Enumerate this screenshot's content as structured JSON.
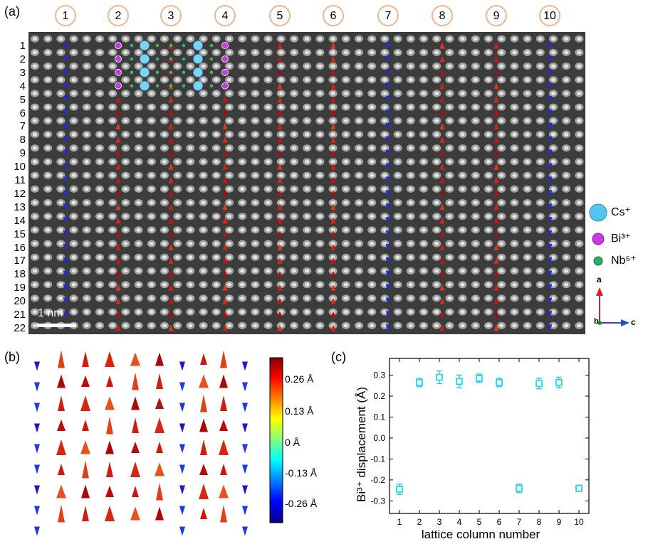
{
  "panels": {
    "a_label": "(a)",
    "b_label": "(b)",
    "c_label": "(c)"
  },
  "columns": [
    "1",
    "2",
    "3",
    "4",
    "5",
    "6",
    "7",
    "8",
    "9",
    "10"
  ],
  "rows": [
    "1",
    "2",
    "3",
    "4",
    "5",
    "6",
    "7",
    "8",
    "9",
    "10",
    "11",
    "12",
    "13",
    "14",
    "15",
    "16",
    "17",
    "18",
    "19",
    "20",
    "21",
    "22"
  ],
  "scale_bar": "1 nm",
  "legend": {
    "cs": "Cs⁺",
    "bi": "Bi³⁺",
    "nb": "Nb⁵⁺"
  },
  "axes_indicator": {
    "a": "a",
    "b": "b",
    "c": "c"
  },
  "colorbar": {
    "labels": [
      "0.26 Å",
      "0.13 Å",
      "0 Å",
      "-0.13 Å",
      "-0.26 Å"
    ]
  },
  "colors": {
    "positive": "#d71e14",
    "negative": "#1f2fd0",
    "marker": "#2ad4e6",
    "circle": "#f2b48c"
  },
  "chart_data": {
    "type": "scatter",
    "xlabel": "lattice column number",
    "ylabel": "Bi³⁺ displacement (Å)",
    "x": [
      1,
      2,
      3,
      4,
      5,
      6,
      7,
      8,
      9,
      10
    ],
    "y": [
      -0.245,
      0.265,
      0.29,
      0.27,
      0.285,
      0.265,
      -0.24,
      0.26,
      0.265,
      -0.24
    ],
    "error": [
      0.025,
      0.02,
      0.03,
      0.03,
      0.02,
      0.02,
      0.02,
      0.025,
      0.025,
      0.015
    ],
    "xticks": [
      "1",
      "2",
      "3",
      "4",
      "5",
      "6",
      "7",
      "8",
      "9",
      "10"
    ],
    "yticks": [
      "-0.3",
      "-0.2",
      "-0.1",
      "0.0",
      "0.1",
      "0.2",
      "0.3"
    ],
    "xlim": [
      0.5,
      10.5
    ],
    "ylim": [
      -0.36,
      0.38
    ]
  }
}
